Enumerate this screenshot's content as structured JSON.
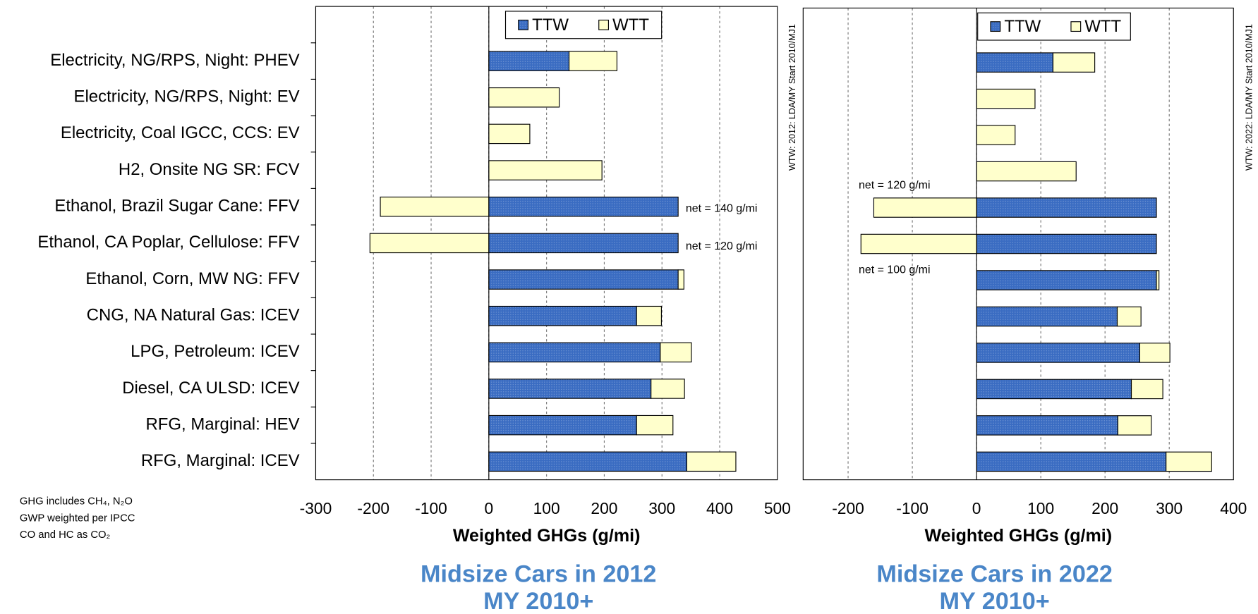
{
  "chart_data": [
    {
      "type": "bar",
      "orientation": "horizontal",
      "stacked": true,
      "title": [
        "Midsize Cars in 2012",
        "MY 2010+"
      ],
      "xlabel": "Weighted GHGs (g/mi)",
      "side_note": "WTW: 2012: LDA/MY Start 2010/MJ1",
      "categories": [
        "Electricity, NG/RPS, Night: PHEV",
        "Electricity, NG/RPS, Night: EV",
        "Electricity, Coal IGCC, CCS: EV",
        "H2, Onsite NG SR: FCV",
        "Ethanol, Brazil Sugar Cane: FFV",
        "Ethanol, CA Poplar, Cellulose: FFV",
        "Ethanol, Corn, MW NG: FFV",
        "CNG, NA Natural Gas: ICEV",
        "LPG, Petroleum: ICEV",
        "Diesel, CA ULSD: ICEV",
        "RFG, Marginal: HEV",
        "RFG, Marginal: ICEV"
      ],
      "series": [
        {
          "name": "TTW",
          "color": "#3a6cc2",
          "values": [
            139,
            0,
            0,
            0,
            328,
            328,
            328,
            256,
            297,
            281,
            256,
            343
          ]
        },
        {
          "name": "WTT",
          "color": "#ffffcc",
          "values": [
            83,
            122,
            71,
            196,
            -188,
            -206,
            10,
            43,
            54,
            58,
            63,
            85
          ]
        }
      ],
      "annotations": [
        "net = 140 g/mi",
        "net = 120 g/mi"
      ],
      "xlim": [
        -300,
        500
      ],
      "xticks": [
        -300,
        -200,
        -100,
        0,
        100,
        200,
        300,
        400,
        500
      ],
      "grid": true,
      "legend": "top"
    },
    {
      "type": "bar",
      "orientation": "horizontal",
      "stacked": true,
      "title": [
        "Midsize Cars in 2022",
        "MY 2010+"
      ],
      "xlabel": "Weighted GHGs (g/mi)",
      "side_note": "WTW: 2022: LDA/MY Start 2010/MJ1",
      "series": [
        {
          "name": "TTW",
          "color": "#3a6cc2",
          "values": [
            119,
            0,
            0,
            0,
            280,
            280,
            280,
            219,
            254,
            241,
            220,
            295
          ]
        },
        {
          "name": "WTT",
          "color": "#ffffcc",
          "values": [
            65,
            91,
            60,
            155,
            -160,
            -180,
            4,
            37,
            47,
            49,
            52,
            71
          ]
        }
      ],
      "annotations": [
        "net = 120 g/mi",
        "net = 100 g/mi"
      ],
      "xlim": [
        -270,
        400
      ],
      "xticks": [
        -200,
        -100,
        0,
        100,
        200,
        300,
        400
      ],
      "grid": true,
      "legend": "top"
    }
  ],
  "notes": [
    "GHG includes CH₄, N₂O",
    "GWP weighted per IPCC",
    "CO and HC as CO₂"
  ]
}
